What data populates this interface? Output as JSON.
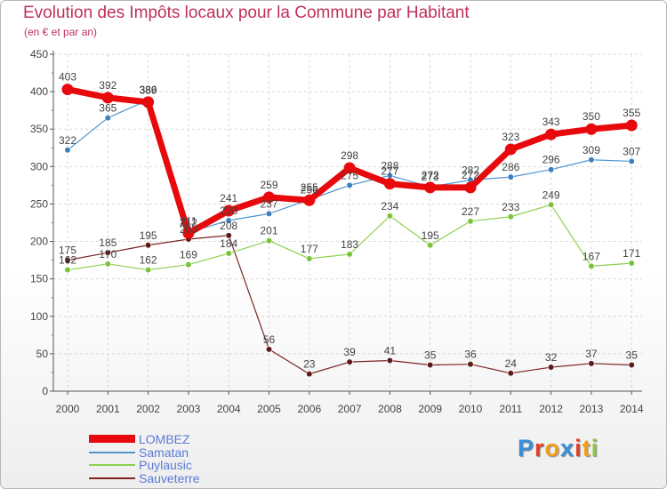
{
  "header": {
    "title": "Evolution des Impôts locaux pour la Commune par Habitant",
    "subtitle": "(en € et par an)"
  },
  "logo": {
    "text": "Proxiti",
    "letter_colors": [
      "#3a8fd8",
      "#e0402a",
      "#f0a020",
      "#3a8fd8",
      "#e0402a",
      "#f0a020",
      "#8dc63f"
    ]
  },
  "chart_data": {
    "type": "line",
    "title": "Evolution des Impôts locaux pour la Commune par Habitant",
    "subtitle": "(en € et par an)",
    "xlabel": "",
    "ylabel": "",
    "ylim": [
      0,
      450
    ],
    "yticks": [
      0,
      50,
      100,
      150,
      200,
      250,
      300,
      350,
      400,
      450
    ],
    "grid": true,
    "legend_position": "bottom-left",
    "x": [
      "2000",
      "2001",
      "2002",
      "2003",
      "2004",
      "2005",
      "2006",
      "2007",
      "2008",
      "2009",
      "2010",
      "2011",
      "2012",
      "2013",
      "2014"
    ],
    "series": [
      {
        "name": "LOMBEZ",
        "color": "#e8090c",
        "values": [
          403,
          392,
          386,
          211,
          241,
          259,
          255,
          298,
          277,
          272,
          272,
          323,
          343,
          350,
          355
        ]
      },
      {
        "name": "Samatan",
        "color": "#4f95d0",
        "values": [
          322,
          365,
          389,
          212,
          228,
          237,
          256,
          275,
          288,
          273,
          282,
          286,
          296,
          309,
          307
        ]
      },
      {
        "name": "Puylausic",
        "color": "#8bd14e",
        "values": [
          162,
          170,
          162,
          169,
          184,
          201,
          177,
          183,
          234,
          195,
          227,
          233,
          249,
          167,
          171
        ]
      },
      {
        "name": "Sauveterre",
        "color": "#7d2424",
        "values": [
          175,
          185,
          195,
          203,
          208,
          56,
          23,
          39,
          41,
          35,
          36,
          24,
          32,
          37,
          35
        ]
      }
    ]
  }
}
